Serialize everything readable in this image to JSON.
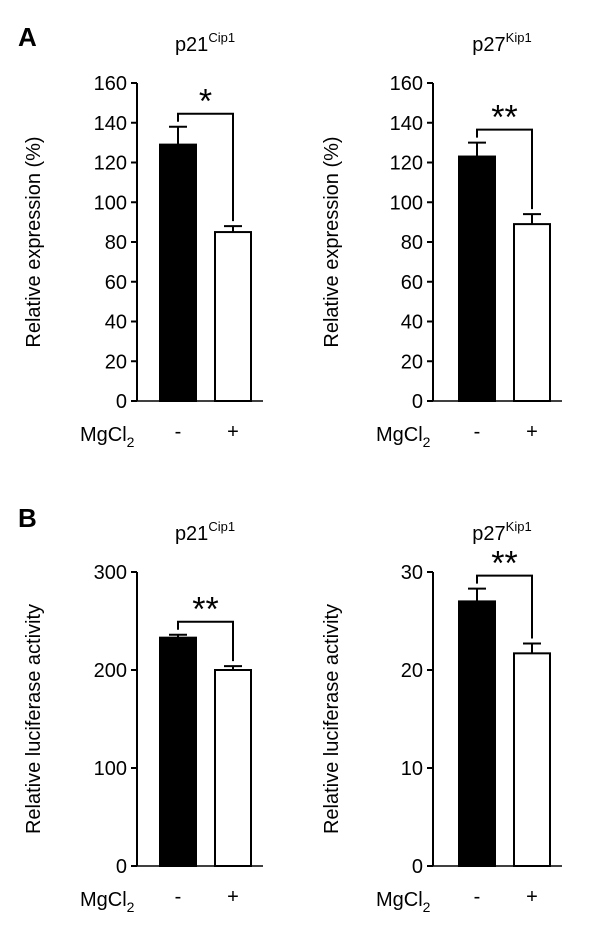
{
  "panels": [
    {
      "letter": "A"
    },
    {
      "letter": "B"
    }
  ],
  "group_label": {
    "base": "MgCl",
    "sub": "2"
  },
  "chart_data": [
    {
      "type": "bar",
      "panel": "A",
      "title": {
        "base": "p21",
        "sup": "Cip1"
      },
      "ylabel": "Relative expression  (%)",
      "categories": [
        "-",
        "+"
      ],
      "values": [
        129,
        85
      ],
      "errors": [
        9,
        3
      ],
      "bar_fill": [
        "#000000",
        "#ffffff"
      ],
      "ylim": [
        0,
        160
      ],
      "yticks": [
        0,
        20,
        40,
        60,
        80,
        100,
        120,
        140,
        160
      ],
      "significance": "*"
    },
    {
      "type": "bar",
      "panel": "A",
      "title": {
        "base": "p27",
        "sup": "Kip1"
      },
      "ylabel": "Relative expression  (%)",
      "categories": [
        "-",
        "+"
      ],
      "values": [
        123,
        89
      ],
      "errors": [
        7,
        5
      ],
      "bar_fill": [
        "#000000",
        "#ffffff"
      ],
      "ylim": [
        0,
        160
      ],
      "yticks": [
        0,
        20,
        40,
        60,
        80,
        100,
        120,
        140,
        160
      ],
      "significance": "**"
    },
    {
      "type": "bar",
      "panel": "B",
      "title": {
        "base": "p21",
        "sup": "Cip1"
      },
      "ylabel": "Relative luciferase activity",
      "categories": [
        "-",
        "+"
      ],
      "values": [
        233,
        200
      ],
      "errors": [
        3,
        4
      ],
      "bar_fill": [
        "#000000",
        "#ffffff"
      ],
      "ylim": [
        0,
        300
      ],
      "yticks": [
        0,
        100,
        200,
        300
      ],
      "significance": "**"
    },
    {
      "type": "bar",
      "panel": "B",
      "title": {
        "base": "p27",
        "sup": "Kip1"
      },
      "ylabel": "Relative luciferase activity",
      "categories": [
        "-",
        "+"
      ],
      "values": [
        27,
        21.7
      ],
      "errors": [
        1.3,
        1
      ],
      "bar_fill": [
        "#000000",
        "#ffffff"
      ],
      "ylim": [
        0,
        30
      ],
      "yticks": [
        0,
        10,
        20,
        30
      ],
      "significance": "**"
    }
  ]
}
